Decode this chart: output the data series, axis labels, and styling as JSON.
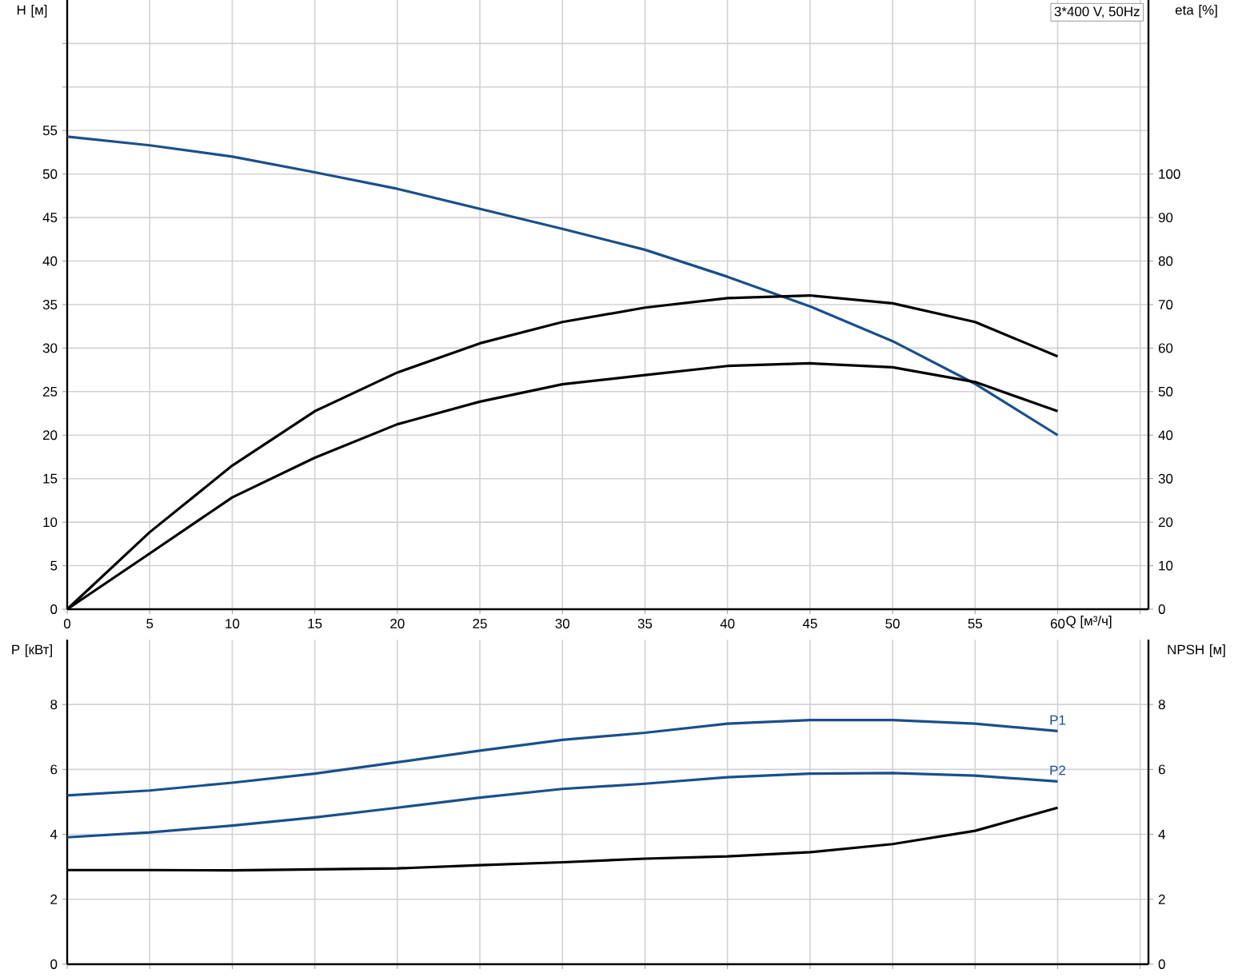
{
  "chart_data": [
    {
      "type": "line",
      "xlabel": "Q [м³/ч]",
      "ylabel": "H [м]",
      "y2label": "eta [%]",
      "grid": true,
      "annotations": [
        "3*400 V, 50Hz"
      ],
      "x": [
        0,
        5,
        10,
        15,
        20,
        25,
        30,
        35,
        40,
        45,
        50,
        55,
        60
      ],
      "xlim": [
        0,
        65.5
      ],
      "xticks": [
        0,
        5,
        10,
        15,
        20,
        25,
        30,
        35,
        40,
        45,
        50,
        55,
        60,
        {
          "value": 65,
          "label": null
        }
      ],
      "ylim": [
        0,
        70
      ],
      "yticks": [
        0,
        5,
        10,
        15,
        20,
        25,
        30,
        35,
        40,
        45,
        50,
        55,
        {
          "value": 60,
          "label": null
        },
        {
          "value": 65,
          "label": null
        }
      ],
      "y2lim": [
        0,
        140
      ],
      "y2ticks": [
        0,
        10,
        20,
        30,
        40,
        50,
        60,
        70,
        80,
        90,
        100
      ],
      "series": [
        {
          "color": "#1a4f8b",
          "axis": "y",
          "values": [
            54.3,
            53.3,
            52.0,
            50.2,
            48.3,
            46.0,
            43.7,
            41.3,
            38.2,
            34.8,
            30.8,
            25.9,
            20.0
          ]
        },
        {
          "color": "#000000",
          "axis": "y2",
          "values": [
            0,
            17.7,
            33,
            45.5,
            54.4,
            61.1,
            66,
            69.3,
            71.5,
            72.1,
            70.3,
            66.0,
            58.1
          ]
        },
        {
          "color": "#000000",
          "axis": "y2",
          "values": [
            0,
            12.8,
            25.7,
            34.8,
            42.5,
            47.7,
            51.7,
            53.8,
            55.9,
            56.5,
            55.6,
            52.2,
            45.5
          ]
        }
      ]
    },
    {
      "type": "line",
      "ylabel": "P [кВт]",
      "y2label": "NPSH [м]",
      "grid": true,
      "tick_labels": "y",
      "x": [
        0,
        5,
        10,
        15,
        20,
        25,
        30,
        35,
        40,
        45,
        50,
        55,
        60
      ],
      "xlim": [
        0,
        65.5
      ],
      "xticks": [
        0,
        5,
        10,
        15,
        20,
        25,
        30,
        35,
        40,
        45,
        50,
        55,
        60,
        65
      ],
      "ylim": [
        0,
        10
      ],
      "yticks": [
        0,
        2,
        4,
        6,
        8
      ],
      "y2lim": [
        0,
        10
      ],
      "y2ticks": [
        0,
        2,
        4,
        6,
        8
      ],
      "series": [
        {
          "name": "P1",
          "color": "#1a4f8b",
          "axis": "y",
          "values": [
            5.2,
            5.35,
            5.59,
            5.87,
            6.22,
            6.58,
            6.91,
            7.13,
            7.41,
            7.52,
            7.52,
            7.41,
            7.18
          ]
        },
        {
          "name": "P2",
          "color": "#1a4f8b",
          "axis": "y",
          "values": [
            3.91,
            4.06,
            4.27,
            4.52,
            4.82,
            5.13,
            5.4,
            5.56,
            5.76,
            5.87,
            5.89,
            5.81,
            5.63
          ]
        },
        {
          "color": "#000000",
          "axis": "y2",
          "values": [
            2.9,
            2.9,
            2.89,
            2.92,
            2.95,
            3.05,
            3.14,
            3.25,
            3.32,
            3.45,
            3.7,
            4.11,
            4.82
          ]
        }
      ]
    }
  ]
}
